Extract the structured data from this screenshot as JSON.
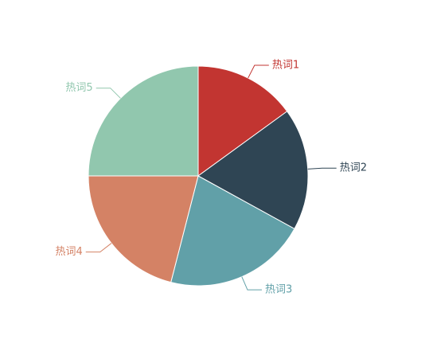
{
  "chart_data": {
    "type": "pie",
    "categories": [
      "热词1",
      "热词2",
      "热词3",
      "热词4",
      "热词5"
    ],
    "values": [
      15,
      18,
      21,
      21,
      25
    ],
    "colors": [
      "#c23531",
      "#2f4554",
      "#61a0a8",
      "#d48265",
      "#91c7ae"
    ],
    "start_angle": "top",
    "direction": "clockwise",
    "legend": "none"
  }
}
